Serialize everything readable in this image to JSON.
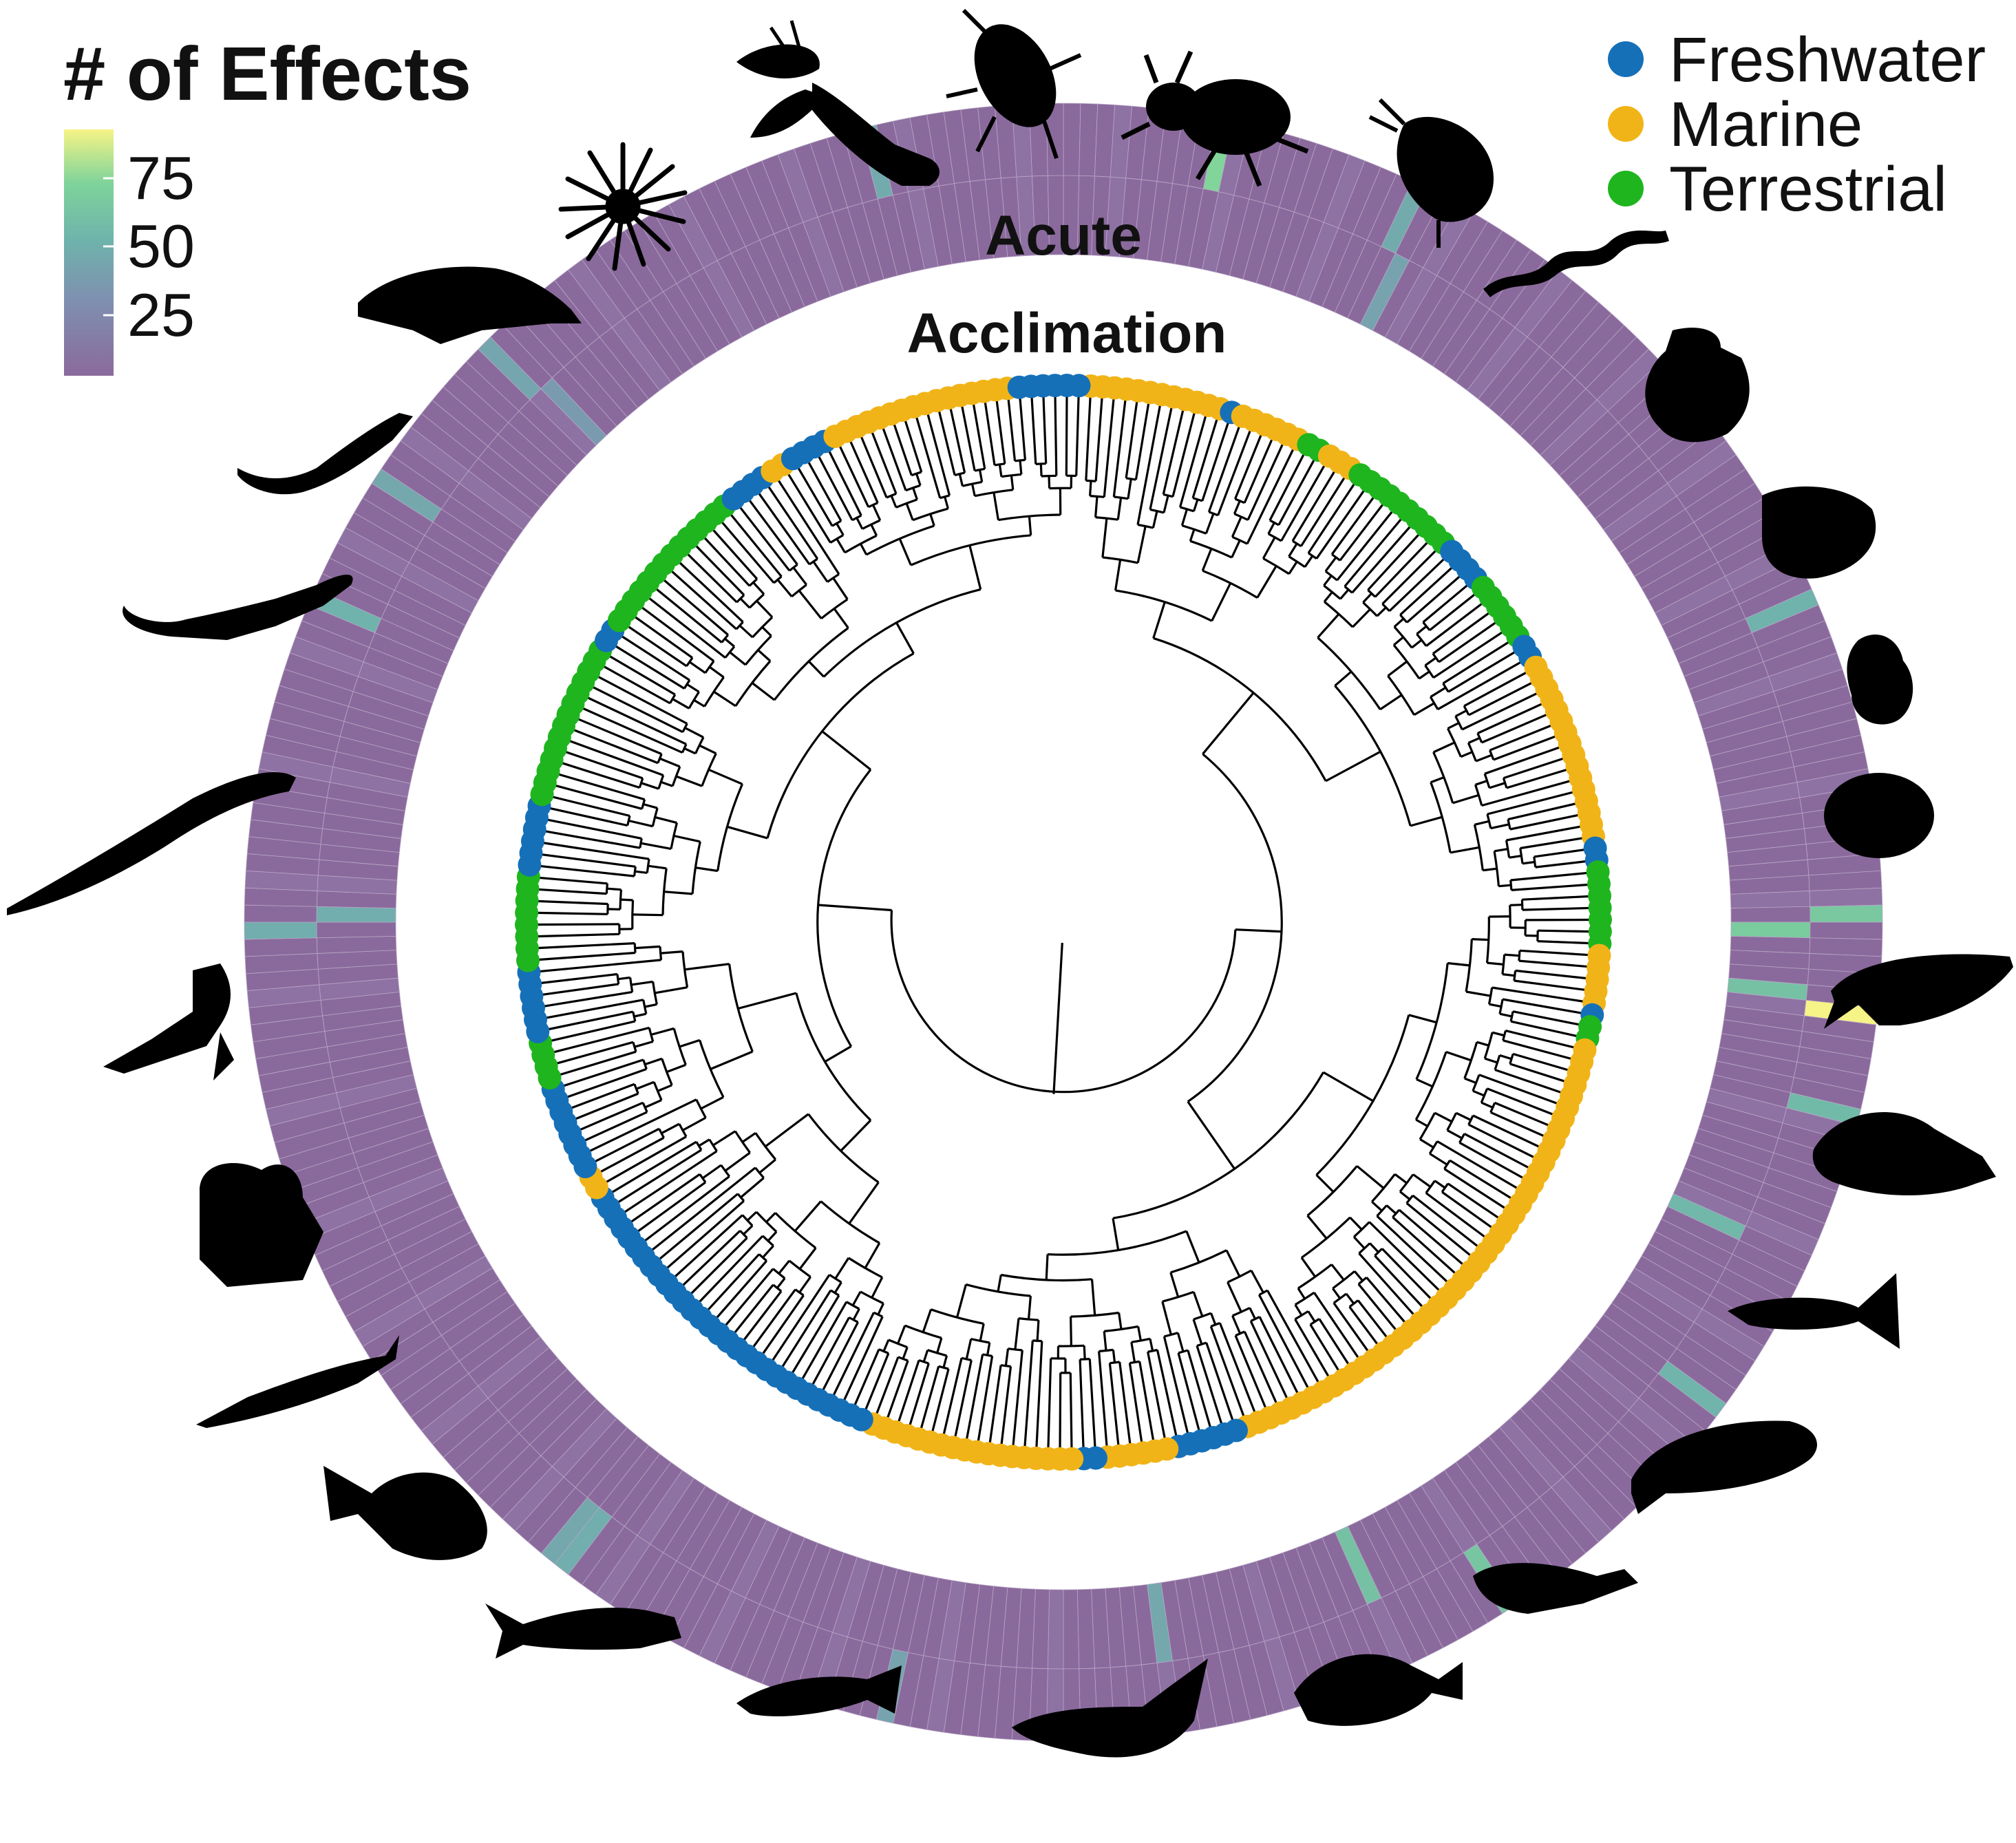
{
  "colorbar": {
    "title": "# of Effects",
    "ticks": [
      "75",
      "50",
      "25"
    ],
    "tick_values": [
      75,
      50,
      25
    ],
    "range": [
      0,
      90
    ],
    "colors": [
      "#8a6a9c",
      "#7f8fb0",
      "#6fb3ac",
      "#7ed39a",
      "#f6f486"
    ]
  },
  "legend": {
    "items": [
      {
        "label": "Freshwater",
        "color": "#1570b8"
      },
      {
        "label": "Marine",
        "color": "#f1b418"
      },
      {
        "label": "Terrestrial",
        "color": "#1fb51f"
      }
    ]
  },
  "rings": {
    "outer_label": "Acute",
    "inner_label": "Acclimation",
    "base_color": "#8a6a9c"
  },
  "tip_habitats": [
    {
      "habitat": "Marine",
      "count": 12
    },
    {
      "habitat": "Freshwater",
      "count": 1
    },
    {
      "habitat": "Marine",
      "count": 6
    },
    {
      "habitat": "Terrestrial",
      "count": 2
    },
    {
      "habitat": "Marine",
      "count": 3
    },
    {
      "habitat": "Terrestrial",
      "count": 10
    },
    {
      "habitat": "Freshwater",
      "count": 4
    },
    {
      "habitat": "Terrestrial",
      "count": 6
    },
    {
      "habitat": "Freshwater",
      "count": 2
    },
    {
      "habitat": "Marine",
      "count": 16
    },
    {
      "habitat": "Freshwater",
      "count": 2
    },
    {
      "habitat": "Terrestrial",
      "count": 7
    },
    {
      "habitat": "Marine",
      "count": 5
    },
    {
      "habitat": "Freshwater",
      "count": 1
    },
    {
      "habitat": "Terrestrial",
      "count": 2
    },
    {
      "habitat": "Marine",
      "count": 45
    },
    {
      "habitat": "Freshwater",
      "count": 6
    },
    {
      "habitat": "Marine",
      "count": 6
    },
    {
      "habitat": "Freshwater",
      "count": 2
    },
    {
      "habitat": "Marine",
      "count": 18
    },
    {
      "habitat": "Freshwater",
      "count": 30
    },
    {
      "habitat": "Marine",
      "count": 2
    },
    {
      "habitat": "Freshwater",
      "count": 8
    },
    {
      "habitat": "Terrestrial",
      "count": 4
    },
    {
      "habitat": "Freshwater",
      "count": 6
    },
    {
      "habitat": "Terrestrial",
      "count": 8
    },
    {
      "habitat": "Freshwater",
      "count": 6
    },
    {
      "habitat": "Terrestrial",
      "count": 14
    },
    {
      "habitat": "Freshwater",
      "count": 2
    },
    {
      "habitat": "Terrestrial",
      "count": 14
    },
    {
      "habitat": "Freshwater",
      "count": 4
    },
    {
      "habitat": "Marine",
      "count": 2
    },
    {
      "habitat": "Freshwater",
      "count": 4
    },
    {
      "habitat": "Marine",
      "count": 16
    },
    {
      "habitat": "Freshwater",
      "count": 6
    }
  ],
  "heat_highlights": [
    {
      "ring": "outer",
      "index": 9,
      "value": 68
    },
    {
      "ring": "outer",
      "index": 21,
      "value": 40
    },
    {
      "ring": "inner",
      "index": 22,
      "value": 35
    },
    {
      "ring": "outer",
      "index": 55,
      "value": 45
    },
    {
      "ring": "outer",
      "index": 74,
      "value": 60
    },
    {
      "ring": "inner",
      "index": 75,
      "value": 62
    },
    {
      "ring": "outer",
      "index": 80,
      "value": 90
    },
    {
      "ring": "inner",
      "index": 79,
      "value": 55
    },
    {
      "ring": "outer",
      "index": 86,
      "value": 50
    },
    {
      "ring": "inner",
      "index": 95,
      "value": 48
    },
    {
      "ring": "outer",
      "index": 105,
      "value": 46
    },
    {
      "ring": "outer",
      "index": 122,
      "value": 58
    },
    {
      "ring": "inner",
      "index": 129,
      "value": 55
    },
    {
      "ring": "inner",
      "index": 143,
      "value": 38
    },
    {
      "ring": "outer",
      "index": 160,
      "value": 35
    },
    {
      "ring": "outer",
      "index": 181,
      "value": 42
    },
    {
      "ring": "outer",
      "index": 182,
      "value": 38
    },
    {
      "ring": "outer",
      "index": 224,
      "value": 42
    },
    {
      "ring": "inner",
      "index": 225,
      "value": 42
    },
    {
      "ring": "outer",
      "index": 244,
      "value": 45
    },
    {
      "ring": "outer",
      "index": 252,
      "value": 38
    },
    {
      "ring": "outer",
      "index": 262,
      "value": 36
    },
    {
      "ring": "inner",
      "index": 263,
      "value": 30
    },
    {
      "ring": "outer",
      "index": 288,
      "value": 40
    }
  ],
  "silhouettes": [
    "sea-urchin-icon",
    "lobster-icon",
    "isopod-icon",
    "beetle-icon",
    "daphnia-icon",
    "worm-icon",
    "scallop-icon",
    "clam-icon",
    "snail-icon",
    "oyster-icon",
    "fish-icon",
    "fish-icon",
    "guppy-icon",
    "flatfish-icon",
    "sculpin-icon",
    "sunfish-icon",
    "catfish-icon",
    "trout-icon",
    "loach-icon",
    "piranha-icon",
    "sturgeon-icon",
    "toad-icon",
    "frog-icon",
    "salamander-icon",
    "lizard-icon",
    "gecko-icon",
    "turtle-icon"
  ]
}
